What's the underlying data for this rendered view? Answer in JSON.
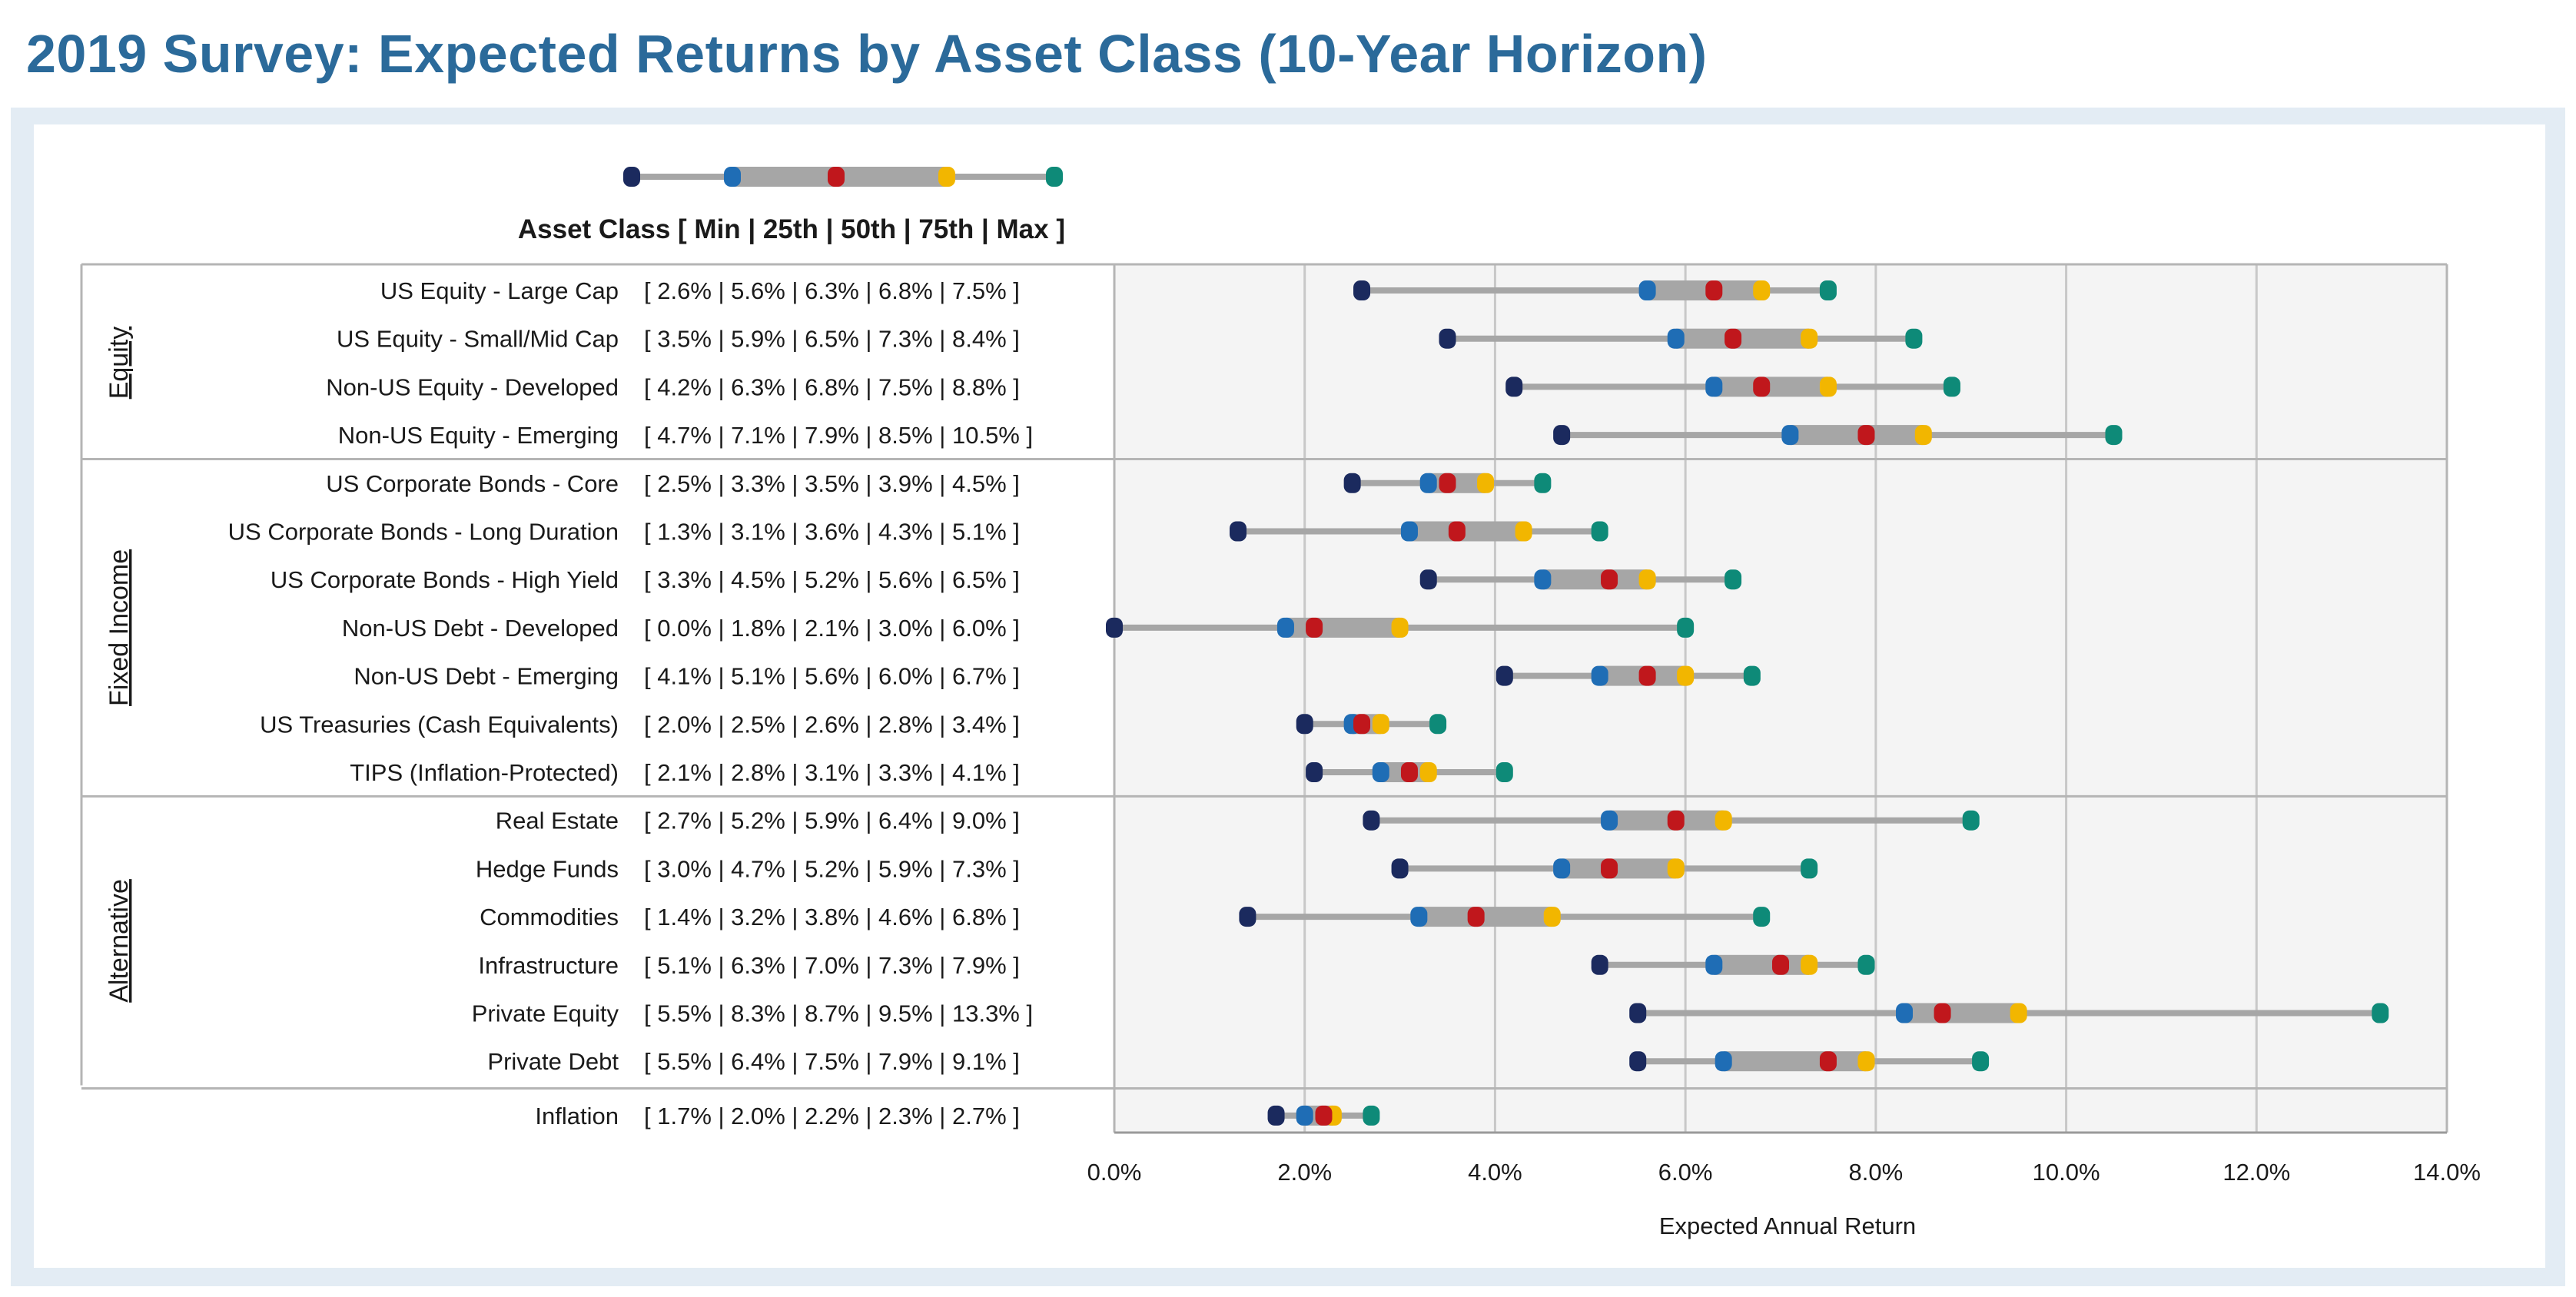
{
  "title": "2019 Survey: Expected Returns by Asset Class (10-Year Horizon)",
  "legend_caption": "Asset Class [ Min | 25th | 50th | 75th | Max ]",
  "colors": {
    "min": "#1b2a5e",
    "p25": "#1f6db5",
    "median": "#c0171c",
    "p75": "#f2b600",
    "max": "#0e8a78",
    "whisker": "#a6a6a6",
    "box": "#a6a6a6",
    "plot_bg": "#f4f4f4",
    "grid": "#c8c8c8"
  },
  "chart_data": {
    "type": "box",
    "xlabel": "Expected Annual Return",
    "xlim": [
      0,
      14
    ],
    "xticks": [
      "0.0%",
      "2.0%",
      "4.0%",
      "6.0%",
      "8.0%",
      "10.0%",
      "12.0%",
      "14.0%"
    ],
    "xtick_values": [
      0,
      2,
      4,
      6,
      8,
      10,
      12,
      14
    ],
    "grid": true,
    "groups": [
      {
        "name": "Equity",
        "rows": [
          {
            "label": "US Equity - Large Cap",
            "stats": "[ 2.6% | 5.6% | 6.3% | 6.8% | 7.5% ]",
            "min": 2.6,
            "p25": 5.6,
            "median": 6.3,
            "p75": 6.8,
            "max": 7.5
          },
          {
            "label": "US Equity - Small/Mid Cap",
            "stats": "[ 3.5% | 5.9% | 6.5% | 7.3% | 8.4% ]",
            "min": 3.5,
            "p25": 5.9,
            "median": 6.5,
            "p75": 7.3,
            "max": 8.4
          },
          {
            "label": "Non-US Equity - Developed",
            "stats": "[ 4.2% | 6.3% | 6.8% | 7.5% | 8.8% ]",
            "min": 4.2,
            "p25": 6.3,
            "median": 6.8,
            "p75": 7.5,
            "max": 8.8
          },
          {
            "label": "Non-US Equity - Emerging",
            "stats": "[ 4.7% | 7.1% | 7.9% | 8.5% | 10.5% ]",
            "min": 4.7,
            "p25": 7.1,
            "median": 7.9,
            "p75": 8.5,
            "max": 10.5
          }
        ]
      },
      {
        "name": "Fixed Income",
        "rows": [
          {
            "label": "US Corporate Bonds - Core",
            "stats": "[ 2.5% | 3.3% | 3.5% | 3.9% | 4.5% ]",
            "min": 2.5,
            "p25": 3.3,
            "median": 3.5,
            "p75": 3.9,
            "max": 4.5
          },
          {
            "label": "US Corporate Bonds - Long Duration",
            "stats": "[ 1.3% | 3.1% | 3.6% | 4.3% | 5.1% ]",
            "min": 1.3,
            "p25": 3.1,
            "median": 3.6,
            "p75": 4.3,
            "max": 5.1
          },
          {
            "label": "US Corporate Bonds - High Yield",
            "stats": "[ 3.3% | 4.5% | 5.2% | 5.6% | 6.5% ]",
            "min": 3.3,
            "p25": 4.5,
            "median": 5.2,
            "p75": 5.6,
            "max": 6.5
          },
          {
            "label": "Non-US Debt - Developed",
            "stats": "[ 0.0% | 1.8% | 2.1% | 3.0% | 6.0% ]",
            "min": 0.0,
            "p25": 1.8,
            "median": 2.1,
            "p75": 3.0,
            "max": 6.0
          },
          {
            "label": "Non-US Debt - Emerging",
            "stats": "[ 4.1% | 5.1% | 5.6% | 6.0% | 6.7% ]",
            "min": 4.1,
            "p25": 5.1,
            "median": 5.6,
            "p75": 6.0,
            "max": 6.7
          },
          {
            "label": "US Treasuries (Cash Equivalents)",
            "stats": "[ 2.0% | 2.5% | 2.6% | 2.8% | 3.4% ]",
            "min": 2.0,
            "p25": 2.5,
            "median": 2.6,
            "p75": 2.8,
            "max": 3.4
          },
          {
            "label": "TIPS (Inflation-Protected)",
            "stats": "[ 2.1% | 2.8% | 3.1% | 3.3% | 4.1% ]",
            "min": 2.1,
            "p25": 2.8,
            "median": 3.1,
            "p75": 3.3,
            "max": 4.1
          }
        ]
      },
      {
        "name": "Alternative",
        "rows": [
          {
            "label": "Real Estate",
            "stats": "[ 2.7% | 5.2% | 5.9% | 6.4% | 9.0% ]",
            "min": 2.7,
            "p25": 5.2,
            "median": 5.9,
            "p75": 6.4,
            "max": 9.0
          },
          {
            "label": "Hedge Funds",
            "stats": "[ 3.0% | 4.7% | 5.2% | 5.9% | 7.3% ]",
            "min": 3.0,
            "p25": 4.7,
            "median": 5.2,
            "p75": 5.9,
            "max": 7.3
          },
          {
            "label": "Commodities",
            "stats": "[ 1.4% | 3.2% | 3.8% | 4.6% | 6.8% ]",
            "min": 1.4,
            "p25": 3.2,
            "median": 3.8,
            "p75": 4.6,
            "max": 6.8
          },
          {
            "label": "Infrastructure",
            "stats": "[ 5.1% | 6.3% | 7.0% | 7.3% | 7.9% ]",
            "min": 5.1,
            "p25": 6.3,
            "median": 7.0,
            "p75": 7.3,
            "max": 7.9
          },
          {
            "label": "Private Equity",
            "stats": "[ 5.5% | 8.3% | 8.7% | 9.5% | 13.3% ]",
            "min": 5.5,
            "p25": 8.3,
            "median": 8.7,
            "p75": 9.5,
            "max": 13.3
          },
          {
            "label": "Private Debt",
            "stats": "[ 5.5% | 6.4% | 7.5% | 7.9% | 9.1% ]",
            "min": 5.5,
            "p25": 6.4,
            "median": 7.5,
            "p75": 7.9,
            "max": 9.1
          }
        ]
      },
      {
        "name": "",
        "rows": [
          {
            "label": "Inflation",
            "stats": "[ 1.7% | 2.0% | 2.2% | 2.3% | 2.7% ]",
            "min": 1.7,
            "p25": 2.0,
            "median": 2.2,
            "p75": 2.3,
            "max": 2.7
          }
        ]
      }
    ]
  }
}
